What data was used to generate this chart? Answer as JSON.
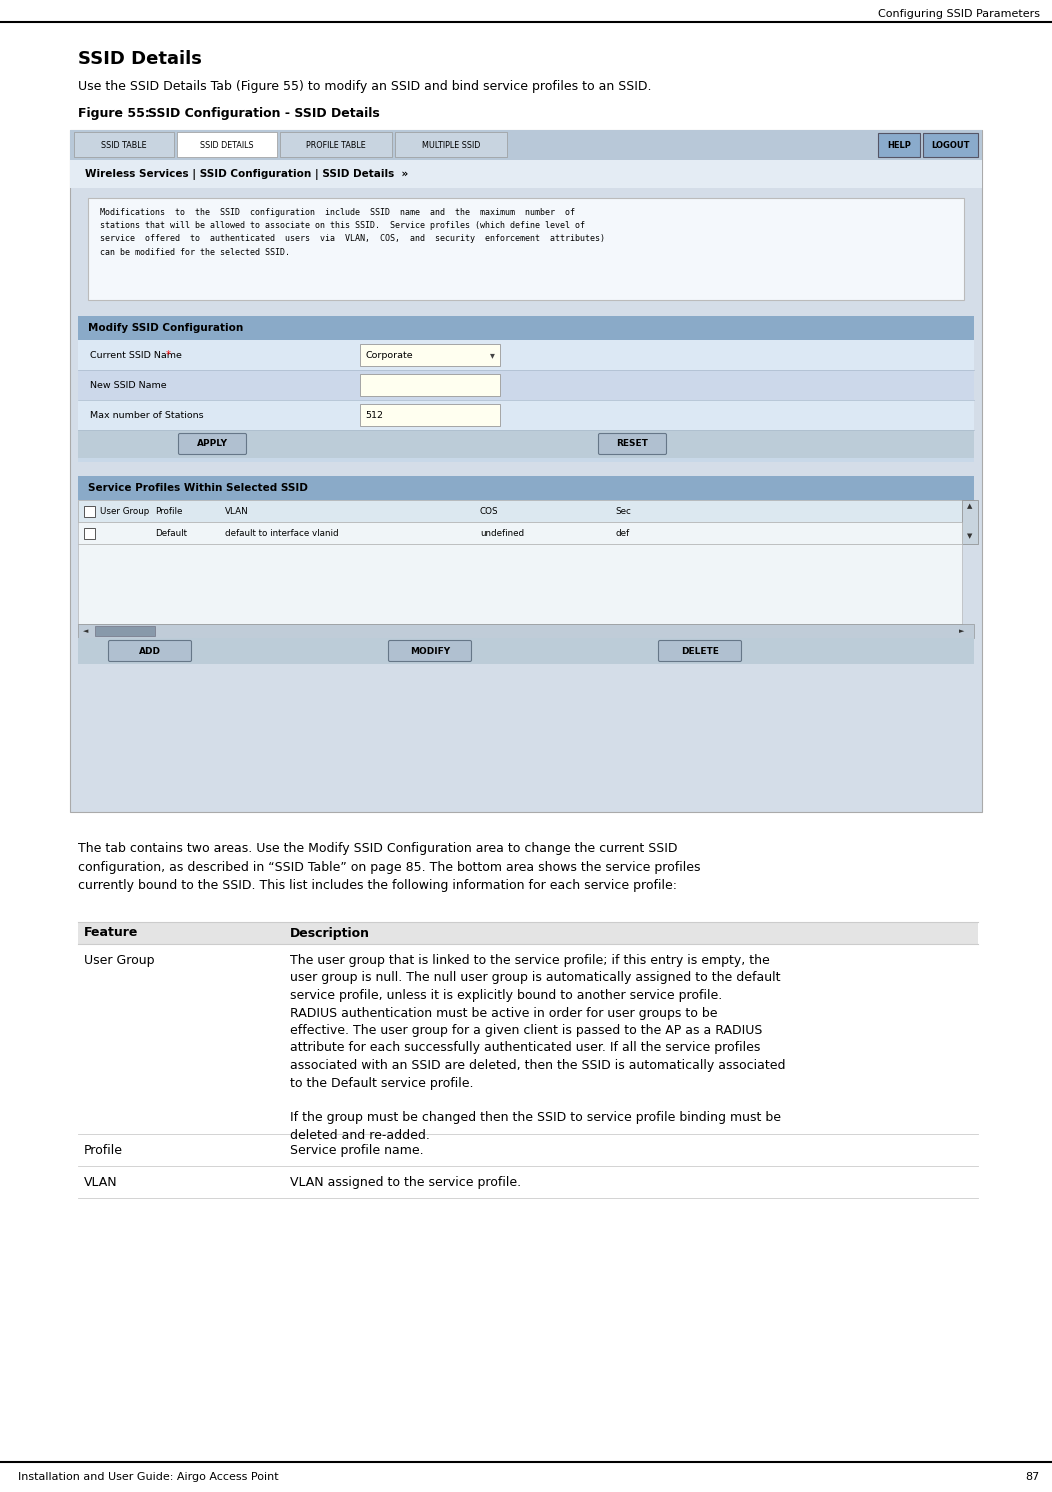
{
  "page_width": 10.52,
  "page_height": 14.92,
  "bg_color": "#ffffff",
  "top_right_text": "Configuring SSID Parameters",
  "bottom_left_text": "Installation and User Guide: Airgo Access Point",
  "bottom_right_text": "87",
  "section_title": "SSID Details",
  "section_intro": "Use the SSID Details Tab (Figure 55) to modify an SSID and bind service profiles to an SSID.",
  "figure_label": "Figure 55:",
  "figure_title": "     SSID Configuration - SSID Details",
  "body_text_after": "The tab contains two areas. Use the Modify SSID Configuration area to change the current SSID\nconfiguration, as described in “SSID Table” on page 85. The bottom area shows the service profiles\ncurrently bound to the SSID. This list includes the following information for each service profile:",
  "table_header_feature": "Feature",
  "table_header_description": "Description",
  "table_rows": [
    {
      "feature": "User Group",
      "description": "The user group that is linked to the service profile; if this entry is empty, the\nuser group is null. The null user group is automatically assigned to the default\nservice profile, unless it is explicitly bound to another service profile.\nRADIUS authentication must be active in order for user groups to be\neffective. The user group for a given client is passed to the AP as a RADIUS\nattribute for each successfully authenticated user. If all the service profiles\nassociated with an SSID are deleted, then the SSID is automatically associated\nto the Default service profile.\n\nIf the group must be changed then the SSID to service profile binding must be\ndeleted and re-added."
    },
    {
      "feature": "Profile",
      "description": "Service profile name."
    },
    {
      "feature": "VLAN",
      "description": "VLAN assigned to the service profile."
    }
  ],
  "ui_screenshot": {
    "tabs": [
      "SSID TABLE",
      "SSID DETAILS",
      "PROFILE TABLE",
      "MULTIPLE SSID"
    ],
    "right_buttons": [
      "HELP",
      "LOGOUT"
    ],
    "breadcrumb": "Wireless Services | SSID Configuration | SSID Details  »",
    "info_text": "Modifications  to  the  SSID  configuration  include  SSID  name  and  the  maximum  number  of\nstations that will be allowed to associate on this SSID.  Service profiles (which define level of\nservice  offered  to  authenticated  users  via  VLAN,  COS,  and  security  enforcement  attributes)\ncan be modified for the selected SSID.",
    "form_title": "Modify SSID Configuration",
    "fields": [
      {
        "label": "Current SSID Name",
        "required": true,
        "value": "Corporate",
        "type": "dropdown"
      },
      {
        "label": "New SSID Name",
        "required": false,
        "value": "",
        "type": "text"
      },
      {
        "label": "Max number of Stations",
        "required": false,
        "value": "512",
        "type": "text"
      }
    ],
    "buttons": [
      "APPLY",
      "RESET"
    ],
    "table_title": "Service Profiles Within Selected SSID",
    "table_cols": [
      "User Group",
      "Profile",
      "VLAN",
      "COS",
      "Sec"
    ],
    "table_data": [
      [
        "",
        "Default",
        "default to interface vlanid",
        "undefined",
        "def"
      ]
    ],
    "bottom_buttons": [
      "ADD",
      "MODIFY",
      "DELETE"
    ]
  }
}
